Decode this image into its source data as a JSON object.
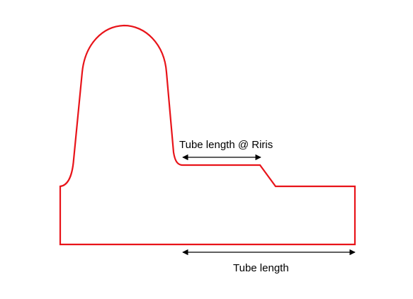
{
  "diagram": {
    "labels": {
      "tube_length_iris": "Tube length @ Riris",
      "tube_length": "Tube length"
    },
    "colors": {
      "outline": "#e8141a",
      "arrows": "#000000",
      "text": "#000000"
    }
  }
}
